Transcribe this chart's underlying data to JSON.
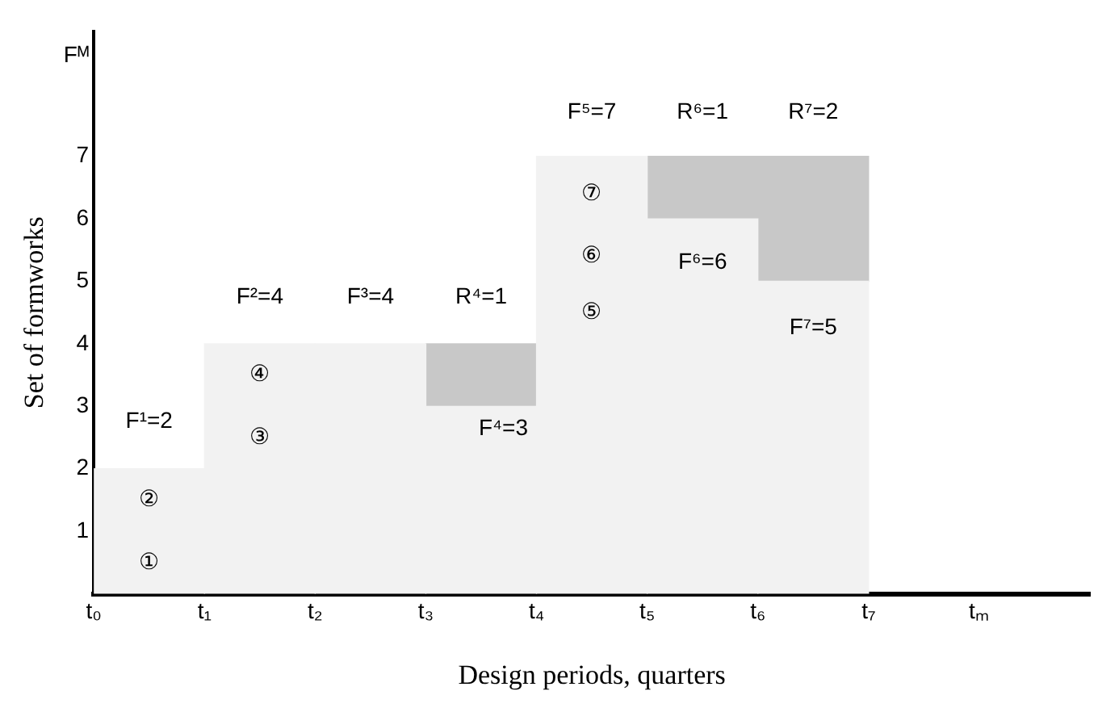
{
  "chart_data": {
    "type": "bar",
    "stacked": true,
    "xlabel": "Design periods, quarters",
    "ylabel": "Set of formworks",
    "categories": [
      "t₀",
      "t₁",
      "t₂",
      "t₃",
      "t₄",
      "t₅",
      "t₆",
      "t₇",
      "tₘ"
    ],
    "series": [
      {
        "color": "#f2f2f2",
        "values": [
          2,
          4,
          4,
          3,
          7,
          6,
          5,
          null,
          null
        ]
      },
      {
        "color": "#c8c8c8",
        "values": [
          null,
          null,
          null,
          1,
          null,
          1,
          2,
          null,
          null
        ]
      }
    ],
    "ylim": [
      0,
      9
    ],
    "yticks": [
      1,
      2,
      3,
      4,
      5,
      6,
      7,
      {
        "value": 8.6,
        "label": "Fᴹ"
      }
    ],
    "grid": false,
    "legend": false,
    "annotations": [
      "F¹=2",
      "F²=4",
      "F³=4",
      "R⁴=1",
      {
        "text": "F⁴=3",
        "x": "t₃",
        "y": 3
      },
      "F⁵=7",
      "R⁶=1",
      "R⁷=2",
      "F⁶=6",
      "F⁷=5",
      "①",
      "②",
      "③",
      "④",
      "⑤",
      "⑥",
      "⑦"
    ]
  }
}
